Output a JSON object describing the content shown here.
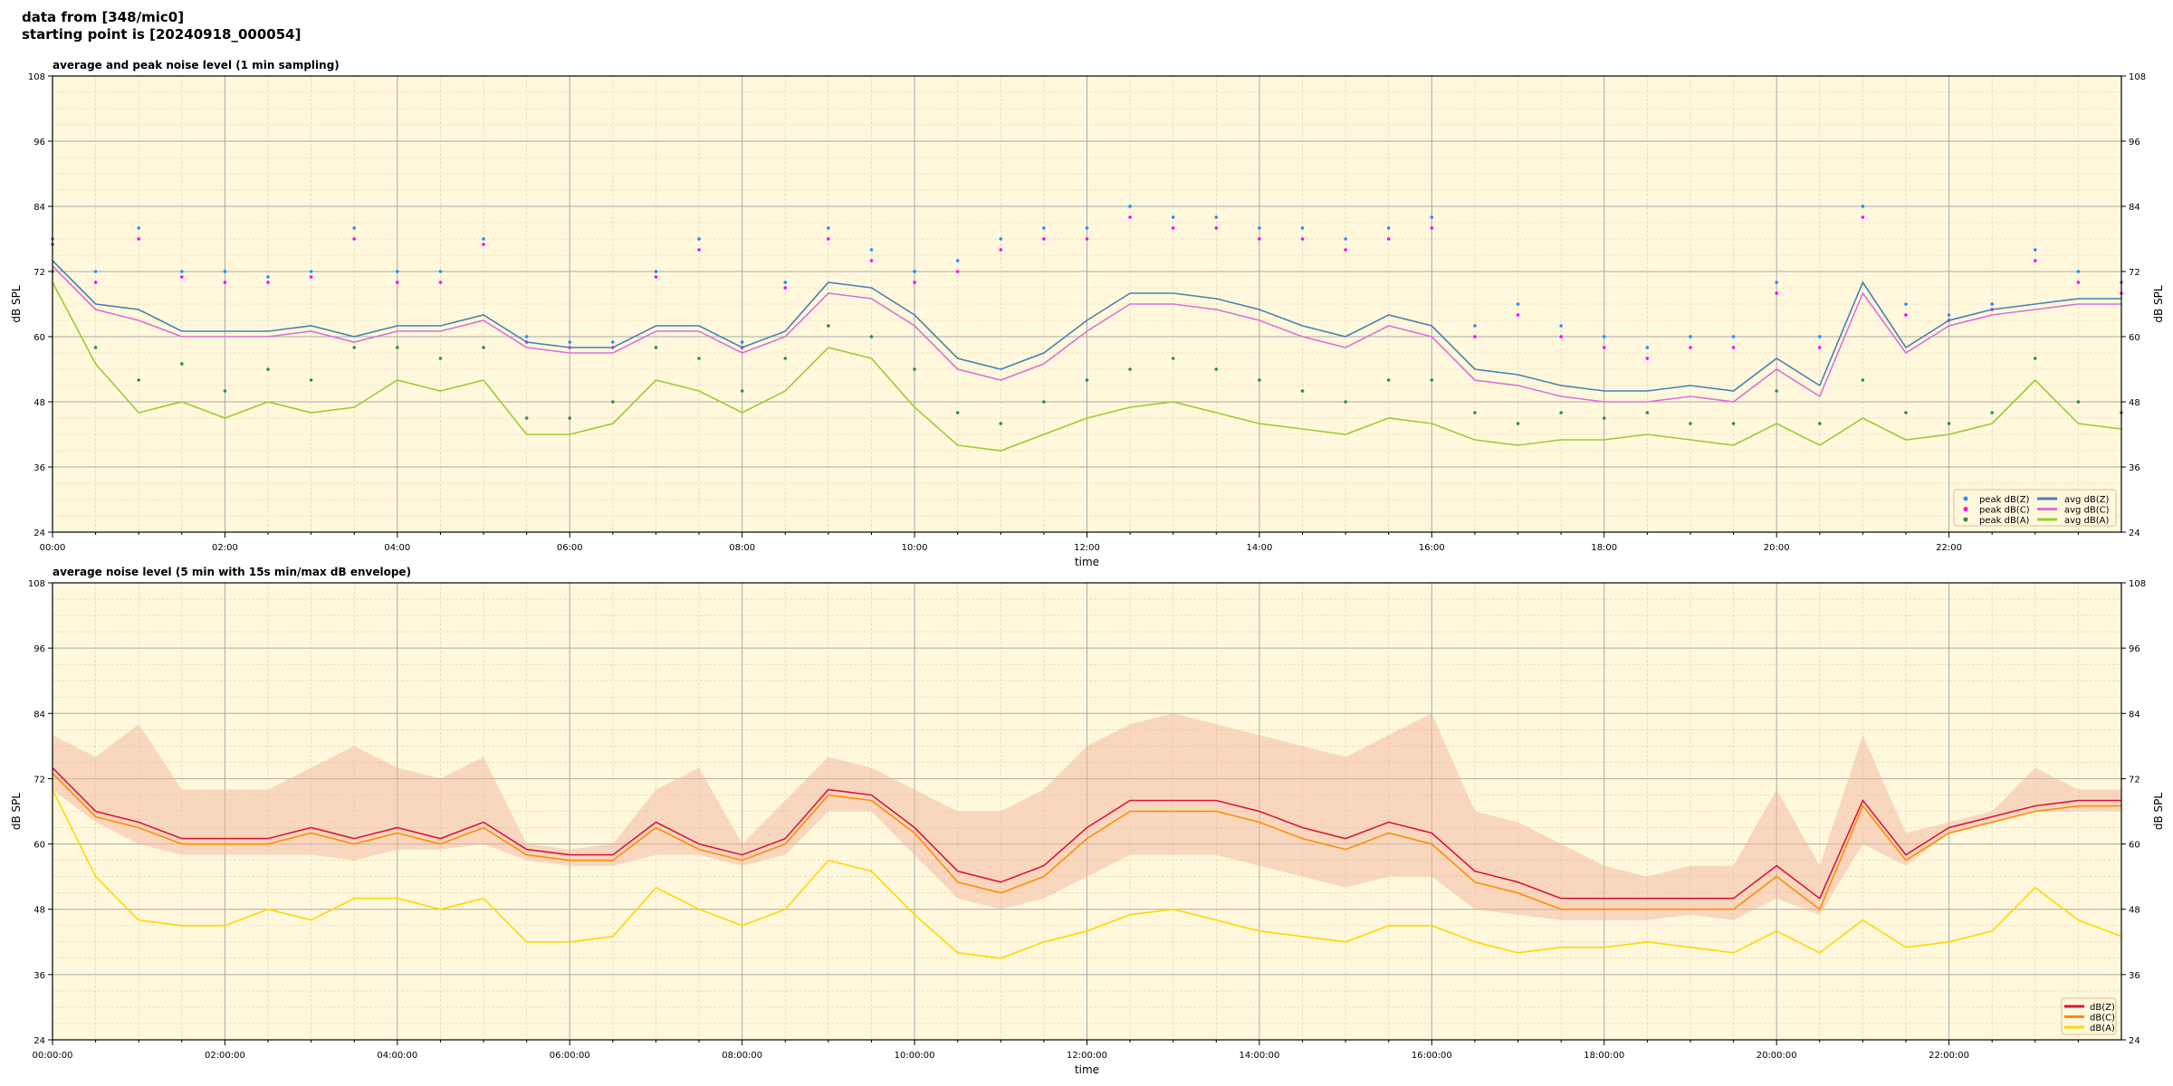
{
  "header": {
    "line1": "data from [348/mic0]",
    "line2": "starting point is [20240918_000054]"
  },
  "colors": {
    "plot_bg": "#fff8dc",
    "peak_z": "#1e90ff",
    "peak_c": "#ff00ff",
    "peak_a": "#2e8b57",
    "avg_z": "#4682b4",
    "avg_c": "#da70d6",
    "avg_a": "#9acd32",
    "z": "#dc143c",
    "c": "#ff8c00",
    "a": "#ffd700",
    "envelope": "#f4b6a0"
  },
  "chart_data": [
    {
      "type": "line",
      "title": "average and peak noise level (1 min sampling)",
      "xlabel": "time",
      "ylabel": "dB SPL",
      "xlim_hours": [
        0,
        24
      ],
      "ylim": [
        24,
        108
      ],
      "yticks": [
        24,
        36,
        48,
        60,
        72,
        84,
        96,
        108
      ],
      "xticks": [
        "00:00",
        "02:00",
        "04:00",
        "06:00",
        "08:00",
        "10:00",
        "12:00",
        "14:00",
        "16:00",
        "18:00",
        "20:00",
        "22:00"
      ],
      "grid": true,
      "legend_position": "bottom-right",
      "x_hours": [
        0,
        0.5,
        1,
        1.5,
        2,
        2.5,
        3,
        3.5,
        4,
        4.5,
        5,
        5.5,
        6,
        6.5,
        7,
        7.5,
        8,
        8.5,
        9,
        9.5,
        10,
        10.5,
        11,
        11.5,
        12,
        12.5,
        13,
        13.5,
        14,
        14.5,
        15,
        15.5,
        16,
        16.5,
        17,
        17.5,
        18,
        18.5,
        19,
        19.5,
        20,
        20.5,
        21,
        21.5,
        22,
        22.5,
        23,
        23.5,
        24
      ],
      "series": [
        {
          "name": "peak dB(Z)",
          "kind": "scatter",
          "color_key": "peak_z",
          "values": [
            78,
            72,
            80,
            72,
            72,
            71,
            72,
            80,
            72,
            72,
            78,
            60,
            59,
            59,
            72,
            78,
            59,
            70,
            80,
            76,
            72,
            74,
            78,
            80,
            80,
            84,
            82,
            82,
            80,
            80,
            78,
            80,
            82,
            62,
            66,
            62,
            60,
            58,
            60,
            60,
            70,
            60,
            84,
            66,
            64,
            66,
            76,
            72,
            70
          ]
        },
        {
          "name": "peak dB(C)",
          "kind": "scatter",
          "color_key": "peak_c",
          "values": [
            77,
            70,
            78,
            71,
            70,
            70,
            71,
            78,
            70,
            70,
            77,
            59,
            58,
            58,
            71,
            76,
            58,
            69,
            78,
            74,
            70,
            72,
            76,
            78,
            78,
            82,
            80,
            80,
            78,
            78,
            76,
            78,
            80,
            60,
            64,
            60,
            58,
            56,
            58,
            58,
            68,
            58,
            82,
            64,
            63,
            65,
            74,
            70,
            68
          ]
        },
        {
          "name": "peak dB(A)",
          "kind": "scatter",
          "color_key": "peak_a",
          "values": [
            72,
            58,
            52,
            55,
            50,
            54,
            52,
            58,
            58,
            56,
            58,
            45,
            45,
            48,
            58,
            56,
            50,
            56,
            62,
            60,
            54,
            46,
            44,
            48,
            52,
            54,
            56,
            54,
            52,
            50,
            48,
            52,
            52,
            46,
            44,
            46,
            45,
            46,
            44,
            44,
            50,
            44,
            52,
            46,
            44,
            46,
            56,
            48,
            46
          ]
        },
        {
          "name": "avg dB(Z)",
          "kind": "line",
          "color_key": "avg_z",
          "values": [
            74,
            66,
            65,
            61,
            61,
            61,
            62,
            60,
            62,
            62,
            64,
            59,
            58,
            58,
            62,
            62,
            58,
            61,
            70,
            69,
            64,
            56,
            54,
            57,
            63,
            68,
            68,
            67,
            65,
            62,
            60,
            64,
            62,
            54,
            53,
            51,
            50,
            50,
            51,
            50,
            56,
            51,
            70,
            58,
            63,
            65,
            66,
            67,
            67
          ]
        },
        {
          "name": "avg dB(C)",
          "kind": "line",
          "color_key": "avg_c",
          "values": [
            73,
            65,
            63,
            60,
            60,
            60,
            61,
            59,
            61,
            61,
            63,
            58,
            57,
            57,
            61,
            61,
            57,
            60,
            68,
            67,
            62,
            54,
            52,
            55,
            61,
            66,
            66,
            65,
            63,
            60,
            58,
            62,
            60,
            52,
            51,
            49,
            48,
            48,
            49,
            48,
            54,
            49,
            68,
            57,
            62,
            64,
            65,
            66,
            66
          ]
        },
        {
          "name": "avg dB(A)",
          "kind": "line",
          "color_key": "avg_a",
          "values": [
            70,
            55,
            46,
            48,
            45,
            48,
            46,
            47,
            52,
            50,
            52,
            42,
            42,
            44,
            52,
            50,
            46,
            50,
            58,
            56,
            47,
            40,
            39,
            42,
            45,
            47,
            48,
            46,
            44,
            43,
            42,
            45,
            44,
            41,
            40,
            41,
            41,
            42,
            41,
            40,
            44,
            40,
            45,
            41,
            42,
            44,
            52,
            44,
            43
          ]
        }
      ]
    },
    {
      "type": "line",
      "title": "average noise level (5 min with 15s min/max dB envelope)",
      "xlabel": "time",
      "ylabel": "dB SPL",
      "xlim_hours": [
        0,
        24
      ],
      "ylim": [
        24,
        108
      ],
      "yticks": [
        24,
        36,
        48,
        60,
        72,
        84,
        96,
        108
      ],
      "xticks": [
        "00:00:00",
        "02:00:00",
        "04:00:00",
        "06:00:00",
        "08:00:00",
        "10:00:00",
        "12:00:00",
        "14:00:00",
        "16:00:00",
        "18:00:00",
        "20:00:00",
        "22:00:00"
      ],
      "grid": true,
      "legend_position": "bottom-right",
      "x_hours": [
        0,
        0.5,
        1,
        1.5,
        2,
        2.5,
        3,
        3.5,
        4,
        4.5,
        5,
        5.5,
        6,
        6.5,
        7,
        7.5,
        8,
        8.5,
        9,
        9.5,
        10,
        10.5,
        11,
        11.5,
        12,
        12.5,
        13,
        13.5,
        14,
        14.5,
        15,
        15.5,
        16,
        16.5,
        17,
        17.5,
        18,
        18.5,
        19,
        19.5,
        20,
        20.5,
        21,
        21.5,
        22,
        22.5,
        23,
        23.5,
        24
      ],
      "envelope": {
        "max": [
          80,
          76,
          82,
          70,
          70,
          70,
          74,
          78,
          74,
          72,
          76,
          60,
          59,
          60,
          70,
          74,
          60,
          68,
          76,
          74,
          70,
          66,
          66,
          70,
          78,
          82,
          84,
          82,
          80,
          78,
          76,
          80,
          84,
          66,
          64,
          60,
          56,
          54,
          56,
          56,
          70,
          56,
          80,
          62,
          64,
          66,
          74,
          70,
          70
        ],
        "min": [
          70,
          64,
          60,
          58,
          58,
          58,
          58,
          57,
          59,
          59,
          60,
          57,
          56,
          56,
          58,
          58,
          56,
          58,
          66,
          66,
          58,
          50,
          48,
          50,
          54,
          58,
          58,
          58,
          56,
          54,
          52,
          54,
          54,
          48,
          47,
          46,
          46,
          46,
          47,
          46,
          50,
          47,
          60,
          56,
          62,
          64,
          66,
          66,
          66
        ]
      },
      "series": [
        {
          "name": "dB(Z)",
          "color_key": "z",
          "values": [
            74,
            66,
            64,
            61,
            61,
            61,
            63,
            61,
            63,
            61,
            64,
            59,
            58,
            58,
            64,
            60,
            58,
            61,
            70,
            69,
            63,
            55,
            53,
            56,
            63,
            68,
            68,
            68,
            66,
            63,
            61,
            64,
            62,
            55,
            53,
            50,
            50,
            50,
            50,
            50,
            56,
            50,
            68,
            58,
            63,
            65,
            67,
            68,
            68
          ]
        },
        {
          "name": "dB(C)",
          "color_key": "c",
          "values": [
            73,
            65,
            63,
            60,
            60,
            60,
            62,
            60,
            62,
            60,
            63,
            58,
            57,
            57,
            63,
            59,
            57,
            60,
            69,
            68,
            62,
            53,
            51,
            54,
            61,
            66,
            66,
            66,
            64,
            61,
            59,
            62,
            60,
            53,
            51,
            48,
            48,
            48,
            48,
            48,
            54,
            48,
            67,
            57,
            62,
            64,
            66,
            67,
            67
          ]
        },
        {
          "name": "dB(A)",
          "color_key": "a",
          "values": [
            70,
            54,
            46,
            45,
            45,
            48,
            46,
            50,
            50,
            48,
            50,
            42,
            42,
            43,
            52,
            48,
            45,
            48,
            57,
            55,
            47,
            40,
            39,
            42,
            44,
            47,
            48,
            46,
            44,
            43,
            42,
            45,
            45,
            42,
            40,
            41,
            41,
            42,
            41,
            40,
            44,
            40,
            46,
            41,
            42,
            44,
            52,
            46,
            43
          ]
        }
      ]
    }
  ]
}
